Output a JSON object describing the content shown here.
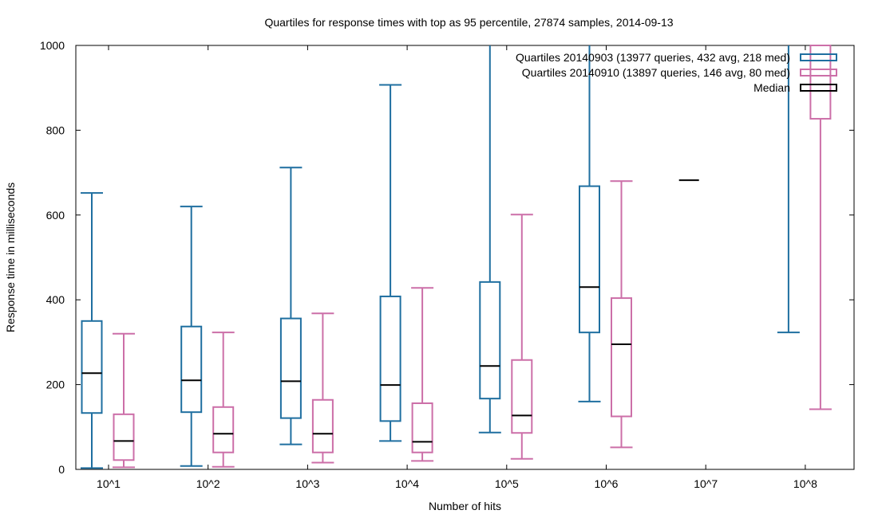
{
  "chart_data": {
    "type": "boxplot",
    "title": "Quartiles for response times with top as 95 percentile, 27874 samples, 2014-09-13",
    "xlabel": "Number of hits",
    "ylabel": "Response time in milliseconds",
    "ylim": [
      0,
      1000
    ],
    "yticks": [
      0,
      200,
      400,
      600,
      800,
      1000
    ],
    "categories": [
      "10^1",
      "10^2",
      "10^3",
      "10^4",
      "10^5",
      "10^6",
      "10^7",
      "10^8"
    ],
    "grid": false,
    "legend_position": "top-right",
    "series": [
      {
        "name": "Quartiles 20140903 (13977 queries, 432 avg, 218 med)",
        "color": "#1f6fa0",
        "boxes": [
          {
            "min": 3,
            "q1": 133,
            "median": 227,
            "q3": 350,
            "max": 652
          },
          {
            "min": 8,
            "q1": 135,
            "median": 210,
            "q3": 337,
            "max": 620
          },
          {
            "min": 59,
            "q1": 121,
            "median": 208,
            "q3": 356,
            "max": 712
          },
          {
            "min": 67,
            "q1": 114,
            "median": 199,
            "q3": 408,
            "max": 907
          },
          {
            "min": 87,
            "q1": 167,
            "median": 244,
            "q3": 442,
            "max": 1000
          },
          {
            "min": 160,
            "q1": 323,
            "median": 430,
            "q3": 668,
            "max": 1000
          },
          {
            "min": 682,
            "q1": 682,
            "median": 682,
            "q3": 682,
            "max": 682
          },
          {
            "min": 323,
            "q1": 1000,
            "median": 1000,
            "q3": 1000,
            "max": 1000
          }
        ]
      },
      {
        "name": "Quartiles 20140910 (13897 queries, 146 avg, 80 med)",
        "color": "#cc6fa8",
        "boxes": [
          {
            "min": 5,
            "q1": 22,
            "median": 67,
            "q3": 130,
            "max": 320
          },
          {
            "min": 6,
            "q1": 40,
            "median": 84,
            "q3": 147,
            "max": 323
          },
          {
            "min": 16,
            "q1": 40,
            "median": 84,
            "q3": 164,
            "max": 368
          },
          {
            "min": 20,
            "q1": 40,
            "median": 65,
            "q3": 156,
            "max": 428
          },
          {
            "min": 25,
            "q1": 86,
            "median": 127,
            "q3": 258,
            "max": 601
          },
          {
            "min": 52,
            "q1": 125,
            "median": 295,
            "q3": 404,
            "max": 680
          },
          null,
          {
            "min": 142,
            "q1": 827,
            "median": 1000,
            "q3": 1000,
            "max": 1000
          }
        ]
      }
    ],
    "median_legend": "Median",
    "median_color": "#000000"
  }
}
